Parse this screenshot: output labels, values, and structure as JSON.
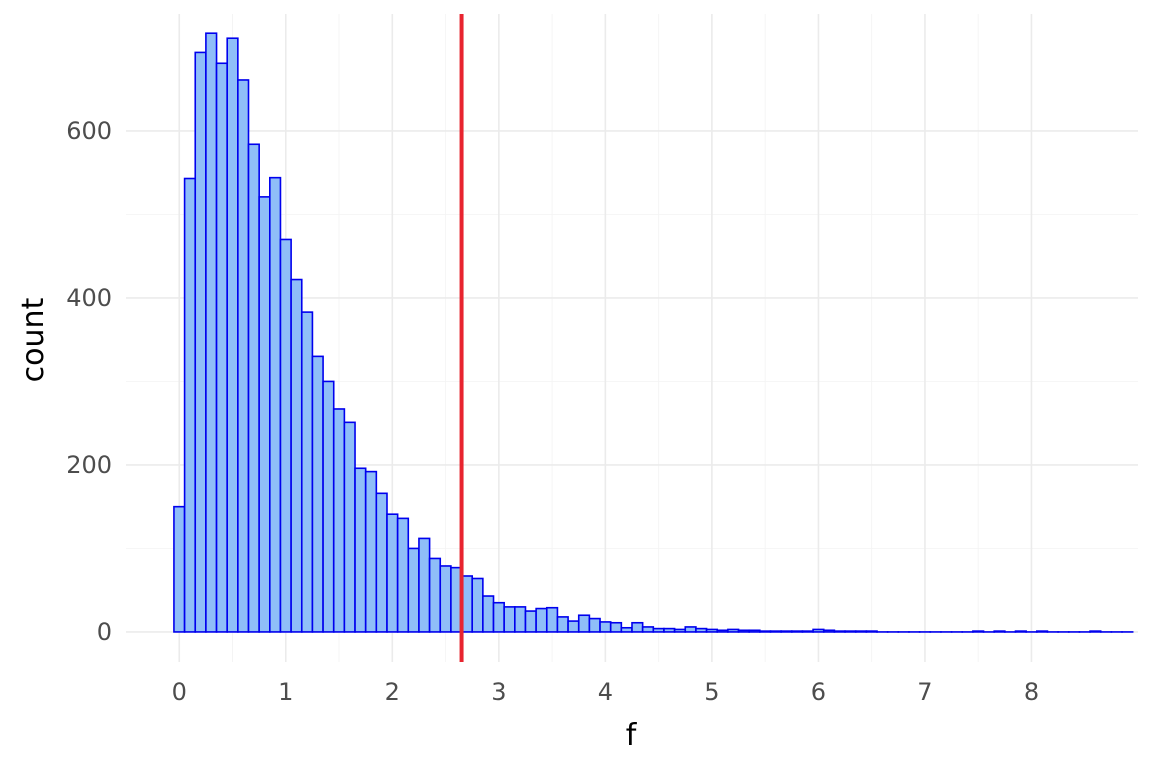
{
  "chart_data": {
    "type": "histogram",
    "title": "",
    "xlabel": "f",
    "ylabel": "count",
    "xlim": [
      -0.5,
      9.0
    ],
    "ylim": [
      -36,
      740
    ],
    "x_ticks": [
      0,
      1,
      2,
      3,
      4,
      5,
      6,
      7,
      8
    ],
    "y_ticks": [
      0,
      200,
      400,
      600
    ],
    "x_tick_labels": [
      "0",
      "1",
      "2",
      "3",
      "4",
      "5",
      "6",
      "7",
      "8"
    ],
    "y_tick_labels": [
      "0",
      "200",
      "400",
      "600"
    ],
    "bin_start": -0.05,
    "bin_width": 0.1,
    "counts": [
      150,
      543,
      694,
      717,
      681,
      711,
      661,
      584,
      521,
      544,
      470,
      422,
      383,
      330,
      300,
      267,
      251,
      196,
      192,
      166,
      141,
      136,
      100,
      112,
      88,
      79,
      77,
      67,
      64,
      43,
      35,
      30,
      30,
      25,
      28,
      29,
      18,
      13,
      20,
      16,
      12,
      11,
      5,
      11,
      6,
      4,
      4,
      3,
      6,
      4,
      3,
      2,
      3,
      2,
      2,
      1,
      1,
      1,
      1,
      1,
      3,
      2,
      1,
      1,
      1,
      1,
      0,
      0,
      0,
      0,
      0,
      0,
      0,
      0,
      0,
      1,
      0,
      1,
      0,
      1,
      0,
      1,
      0,
      0,
      0,
      0,
      1,
      0,
      0,
      0
    ],
    "vline": {
      "x": 2.65,
      "color": "#e8242f"
    },
    "bar_fill": "#8fbef8",
    "bar_stroke": "#0000ee",
    "grid": true
  }
}
